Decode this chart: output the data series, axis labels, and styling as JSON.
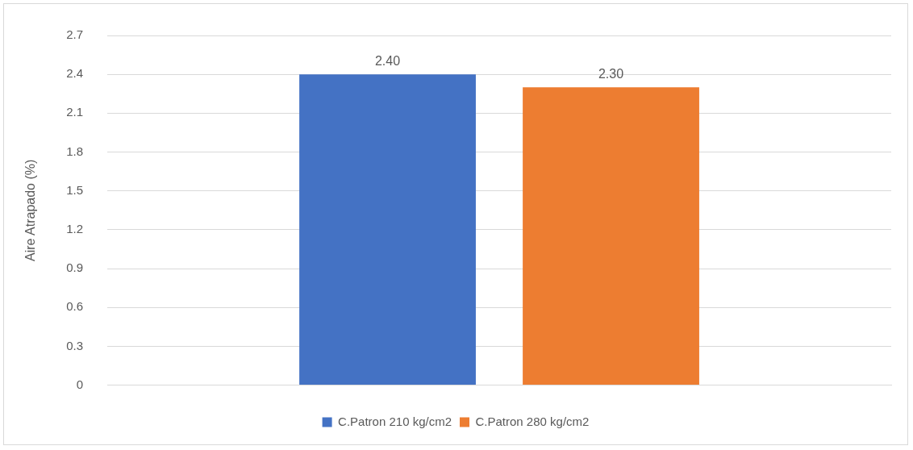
{
  "chart_data": {
    "type": "bar",
    "ylabel": "Aire Atrapado (%)",
    "categories": [
      null
    ],
    "series": [
      {
        "name": "C.Patron 210 kg/cm2",
        "color": "#4472c4",
        "values": [
          2.4
        ],
        "value_labels": [
          "2.40"
        ]
      },
      {
        "name": "C.Patron 280 kg/cm2",
        "color": "#ed7d31",
        "values": [
          2.3
        ],
        "value_labels": [
          "2.30"
        ]
      }
    ],
    "ylim": [
      0,
      2.7
    ],
    "yticks": [
      0,
      0.3,
      0.6,
      0.9,
      1.2,
      1.5,
      1.8,
      2.1,
      2.4,
      2.7
    ],
    "grid": "y",
    "legend": "bottom"
  }
}
